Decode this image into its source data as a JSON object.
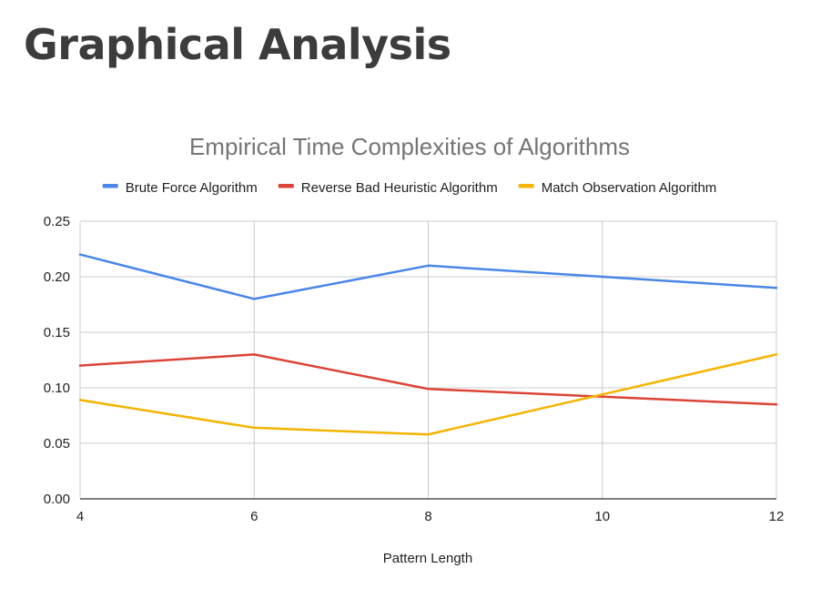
{
  "slide": {
    "title": "Graphical Analysis"
  },
  "chart_data": {
    "type": "line",
    "title": "Empirical Time Complexities of Algorithms",
    "xlabel": "Pattern Length",
    "ylabel": "",
    "x": [
      4,
      6,
      8,
      10,
      12
    ],
    "xlim": [
      4,
      12
    ],
    "ylim": [
      0,
      0.25
    ],
    "x_ticks": [
      "4",
      "6",
      "8",
      "10",
      "12"
    ],
    "y_ticks": [
      "0.00",
      "0.05",
      "0.10",
      "0.15",
      "0.20",
      "0.25"
    ],
    "grid": true,
    "legend_position": "top",
    "series": [
      {
        "name": "Brute Force Algorithm",
        "color": "#4a86e8",
        "values": [
          0.22,
          0.18,
          0.21,
          0.2,
          0.19
        ]
      },
      {
        "name": "Reverse Bad Heuristic Algorithm",
        "color": "#db4437",
        "values": [
          0.12,
          0.13,
          0.099,
          0.092,
          0.085
        ]
      },
      {
        "name": "Match Observation Algorithm",
        "color": "#f4b400",
        "values": [
          0.089,
          0.064,
          0.058,
          0.094,
          0.13
        ]
      }
    ]
  }
}
